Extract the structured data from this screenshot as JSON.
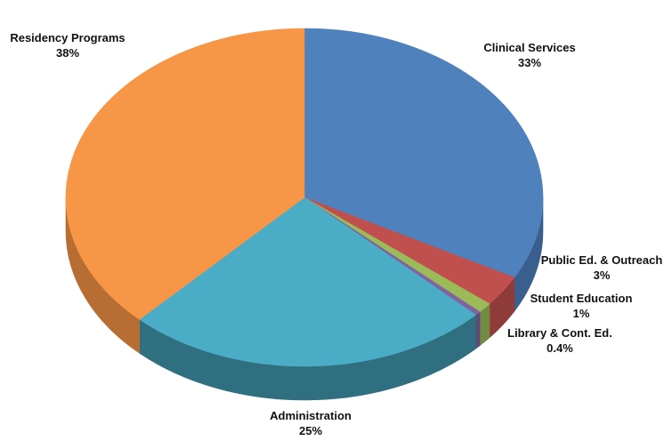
{
  "chart_data": {
    "type": "pie",
    "title": "",
    "style": "3d-tilted",
    "slices": [
      {
        "label": "Clinical Services",
        "value": 33,
        "display": "33%",
        "color": "#4f81bd",
        "side_color": "#3a5f8e"
      },
      {
        "label": "Public Ed. & Outreach",
        "value": 3,
        "display": "3%",
        "color": "#c0504d",
        "side_color": "#8e3b39"
      },
      {
        "label": "Student Education",
        "value": 1,
        "display": "1%",
        "color": "#9bbb59",
        "side_color": "#728a41"
      },
      {
        "label": "Library & Cont. Ed.",
        "value": 0.4,
        "display": "0.4%",
        "color": "#8064a2",
        "side_color": "#5e4a78"
      },
      {
        "label": "Administration",
        "value": 25,
        "display": "25%",
        "color": "#4bacc6",
        "side_color": "#2f6f80"
      },
      {
        "label": "Residency Programs",
        "value": 38,
        "display": "38%",
        "color": "#f79646",
        "side_color": "#b86e32"
      }
    ]
  }
}
